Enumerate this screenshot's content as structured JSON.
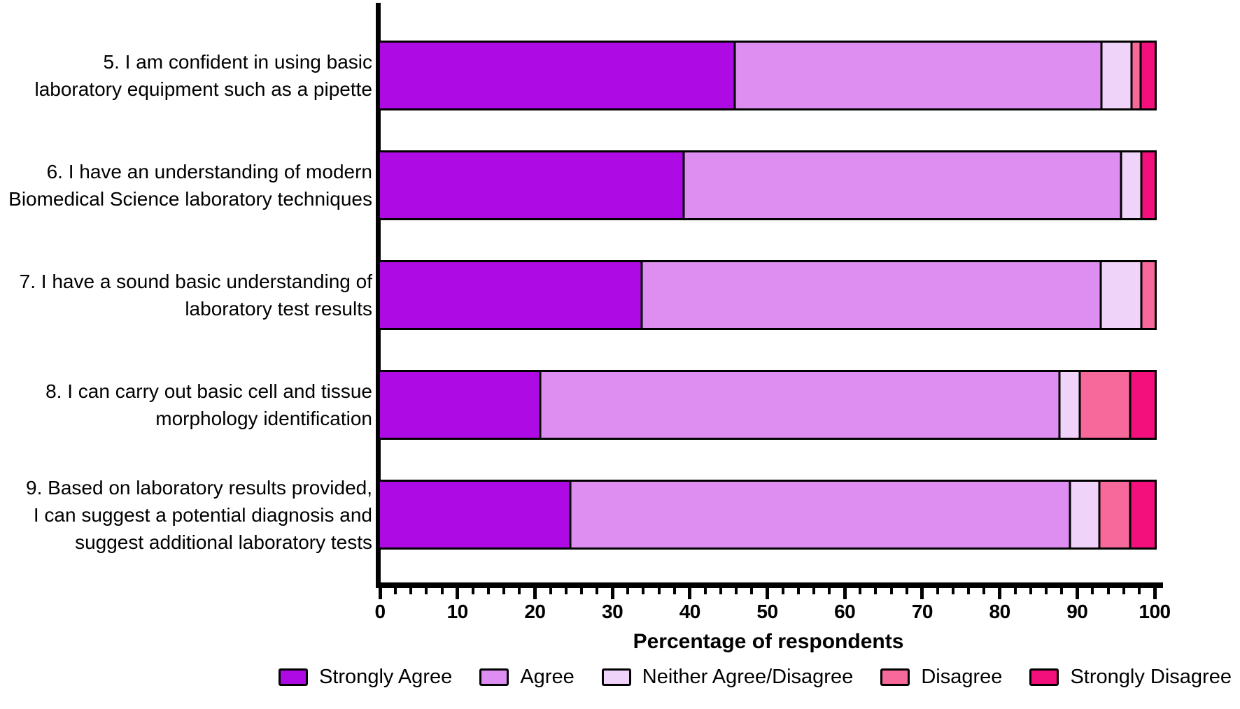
{
  "chart_data": {
    "type": "bar",
    "orientation": "horizontal",
    "stacked": true,
    "xlabel": "Percentage of respondents",
    "xlim": [
      0,
      100
    ],
    "x_major_ticks": [
      0,
      10,
      20,
      30,
      40,
      50,
      60,
      70,
      80,
      90,
      100
    ],
    "minor_tick_step": 2,
    "grid": false,
    "legend_position": "bottom",
    "categories": [
      [
        "5. I am confident in using basic",
        "laboratory equipment such as a pipette"
      ],
      [
        "6. I have an understanding of modern",
        "Biomedical Science laboratory techniques"
      ],
      [
        "7. I have a sound basic understanding of",
        "laboratory test results"
      ],
      [
        "8. I can carry out basic cell and tissue",
        "morphology identification"
      ],
      [
        "9. Based on laboratory results provided,",
        "I can suggest a potential diagnosis and",
        "suggest additional laboratory tests"
      ]
    ],
    "series": [
      {
        "name": "Strongly Agree",
        "color": "#AE0BE4",
        "values": [
          45.8,
          39.2,
          33.8,
          20.7,
          24.6
        ]
      },
      {
        "name": "Agree",
        "color": "#DE8DF0",
        "values": [
          47.3,
          56.5,
          59.2,
          67.0,
          64.5
        ]
      },
      {
        "name": "Neither Agree/Disagree",
        "color": "#F0D3F8",
        "values": [
          3.9,
          2.6,
          5.3,
          2.6,
          3.8
        ]
      },
      {
        "name": "Disagree",
        "color": "#F7689B",
        "values": [
          1.2,
          0.0,
          1.7,
          6.5,
          3.9
        ]
      },
      {
        "name": "Strongly Disagree",
        "color": "#F3107C",
        "values": [
          1.8,
          1.7,
          0.0,
          3.2,
          3.2
        ]
      }
    ]
  }
}
